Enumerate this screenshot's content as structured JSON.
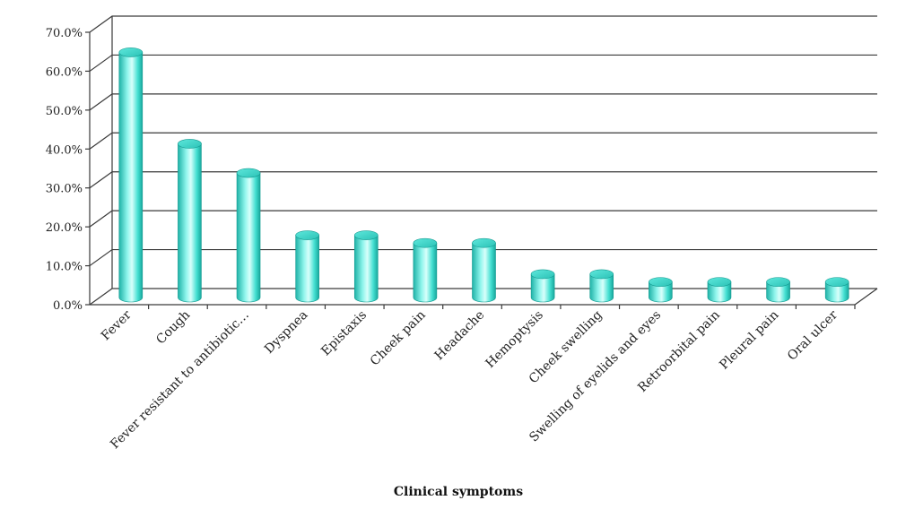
{
  "chart_data": {
    "type": "bar",
    "title": "",
    "xlabel": "Clinical symptoms",
    "ylabel": "",
    "ylim": [
      0,
      70
    ],
    "yticks": [
      0,
      10,
      20,
      30,
      40,
      50,
      60,
      70
    ],
    "ytick_labels": [
      "0.0%",
      "10.0%",
      "20.0%",
      "30.0%",
      "40.0%",
      "50.0%",
      "60.0%",
      "70.0%"
    ],
    "grid": true,
    "style": "3d-cylinder",
    "bar_color": "#40E0D0",
    "categories": [
      "Fever",
      "Cough",
      "Fever resistant to antibiotic…",
      "Dyspnea",
      "Epistaxis",
      "Cheek pain",
      "Headache",
      "Hemoptysis",
      "Cheek swelling",
      "Swelling of eyelids and eyes",
      "Retroorbital pain",
      "Pleural pain",
      "Oral ulcer"
    ],
    "values": [
      63,
      39.5,
      32,
      16,
      16,
      14,
      14,
      6,
      6,
      4,
      4,
      4,
      4
    ]
  }
}
